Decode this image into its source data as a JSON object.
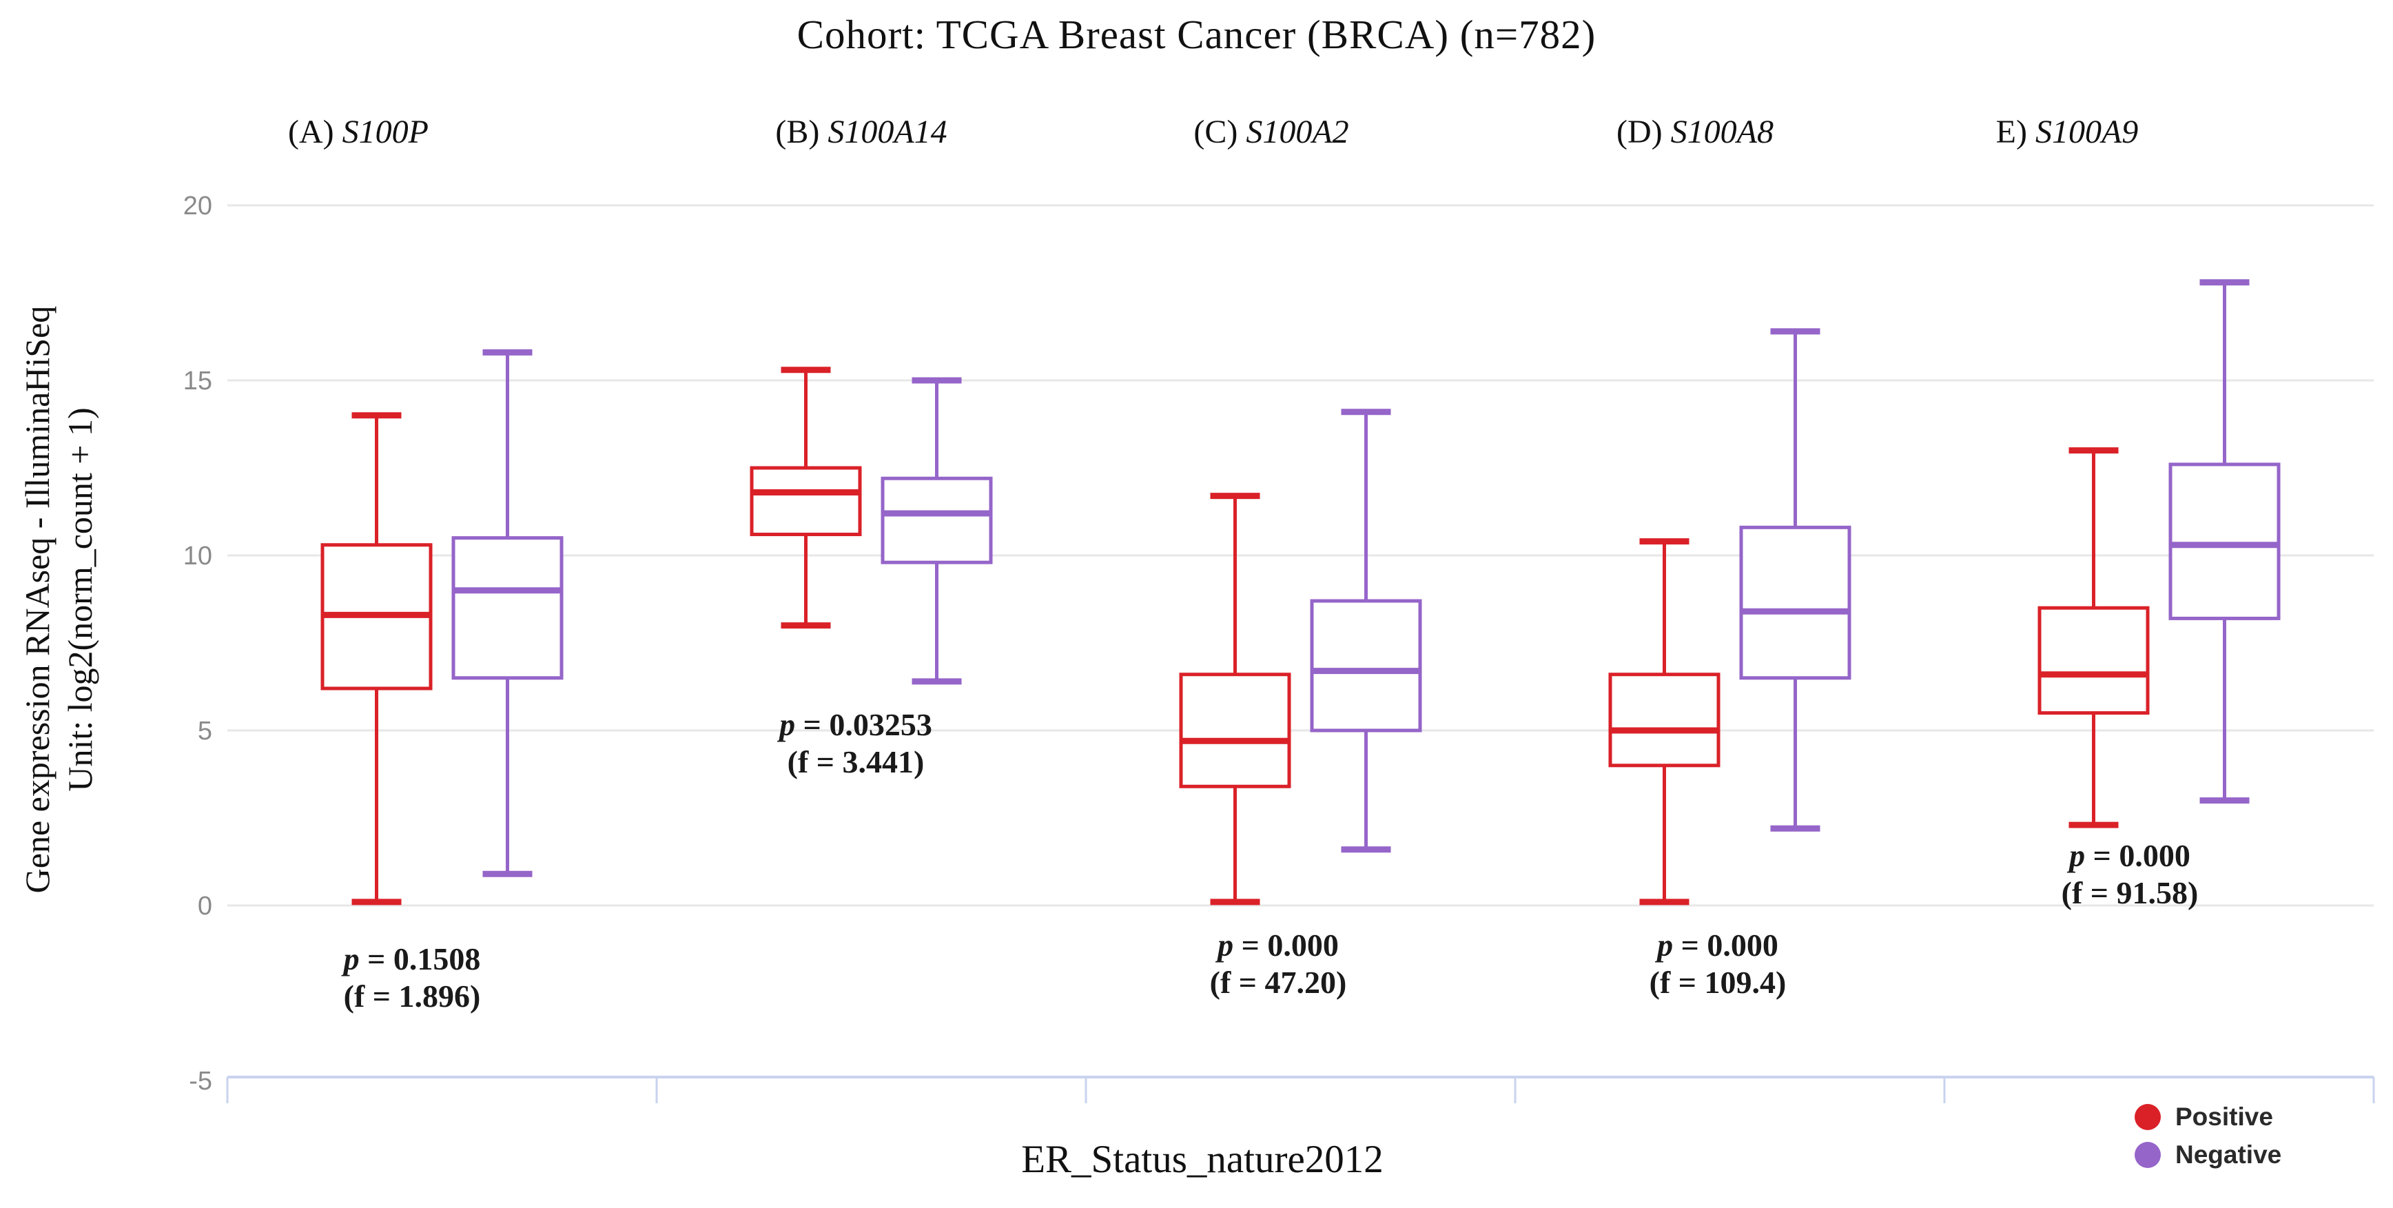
{
  "title": "Cohort: TCGA Breast Cancer (BRCA) (n=782)",
  "y_axis": {
    "title_line1": "Gene expression RNAseq - IlluminaHiSeq",
    "title_line2": "Unit: log2(norm_count + 1)",
    "tick_labels": [
      "20",
      "15",
      "10",
      "5",
      "0",
      "-5"
    ],
    "tick_values": [
      20,
      15,
      10,
      5,
      0,
      -5
    ],
    "gridline_values": [
      20,
      15,
      10,
      5,
      0
    ]
  },
  "x_axis": {
    "title": "ER_Status_nature2012"
  },
  "legend": [
    {
      "label": "Positive",
      "color": "#da2128"
    },
    {
      "label": "Negative",
      "color": "#9565c9"
    }
  ],
  "colors": {
    "positive": "#da2128",
    "negative": "#9565c9",
    "gridline": "#e7e7e7",
    "tick_text": "#8a8a8a",
    "baseline": "#c9d3ee",
    "annotation_text": "#1a1a1a",
    "background": "#ffffff"
  },
  "chart_data": {
    "type": "boxplot",
    "title": "Cohort: TCGA Breast Cancer (BRCA) (n=782)",
    "xlabel": "ER_Status_nature2012",
    "ylabel": "Gene expression RNAseq - IlluminaHiSeq Unit: log2(norm_count + 1)",
    "ylim": [
      -5,
      20
    ],
    "yticks": [
      20,
      15,
      10,
      5,
      0,
      -5
    ],
    "grid": true,
    "legend_position": "bottom-right",
    "groups": [
      "Positive",
      "Negative"
    ],
    "panels": [
      {
        "label": "(A)",
        "gene": "S100P",
        "p_text": "p = 0.1508",
        "f_text": "(f = 1.896)",
        "boxes": [
          {
            "group": "Positive",
            "whisker_low": 0.1,
            "q1": 6.2,
            "median": 8.3,
            "q3": 10.3,
            "whisker_high": 14.0
          },
          {
            "group": "Negative",
            "whisker_low": 0.9,
            "q1": 6.5,
            "median": 9.0,
            "q3": 10.5,
            "whisker_high": 15.8
          }
        ]
      },
      {
        "label": "(B)",
        "gene": "S100A14",
        "p_text": "p = 0.03253",
        "f_text": "(f = 3.441)",
        "boxes": [
          {
            "group": "Positive",
            "whisker_low": 8.0,
            "q1": 10.6,
            "median": 11.8,
            "q3": 12.5,
            "whisker_high": 15.3
          },
          {
            "group": "Negative",
            "whisker_low": 6.4,
            "q1": 9.8,
            "median": 11.2,
            "q3": 12.2,
            "whisker_high": 15.0
          }
        ]
      },
      {
        "label": "(C)",
        "gene": "S100A2",
        "p_text": "p = 0.000",
        "f_text": "(f = 47.20)",
        "boxes": [
          {
            "group": "Positive",
            "whisker_low": 0.1,
            "q1": 3.4,
            "median": 4.7,
            "q3": 6.6,
            "whisker_high": 11.7
          },
          {
            "group": "Negative",
            "whisker_low": 1.6,
            "q1": 5.0,
            "median": 6.7,
            "q3": 8.7,
            "whisker_high": 14.1
          }
        ]
      },
      {
        "label": "(D)",
        "gene": "S100A8",
        "p_text": "p = 0.000",
        "f_text": "(f = 109.4)",
        "boxes": [
          {
            "group": "Positive",
            "whisker_low": 0.1,
            "q1": 4.0,
            "median": 5.0,
            "q3": 6.6,
            "whisker_high": 10.4
          },
          {
            "group": "Negative",
            "whisker_low": 2.2,
            "q1": 6.5,
            "median": 8.4,
            "q3": 10.8,
            "whisker_high": 16.4
          }
        ]
      },
      {
        "label": "E)",
        "gene": "S100A9",
        "p_text": "p = 0.000",
        "f_text": "(f = 91.58)",
        "boxes": [
          {
            "group": "Positive",
            "whisker_low": 2.3,
            "q1": 5.5,
            "median": 6.6,
            "q3": 8.5,
            "whisker_high": 13.0
          },
          {
            "group": "Negative",
            "whisker_low": 3.0,
            "q1": 8.2,
            "median": 10.3,
            "q3": 12.6,
            "whisker_high": 17.8
          }
        ]
      }
    ]
  }
}
